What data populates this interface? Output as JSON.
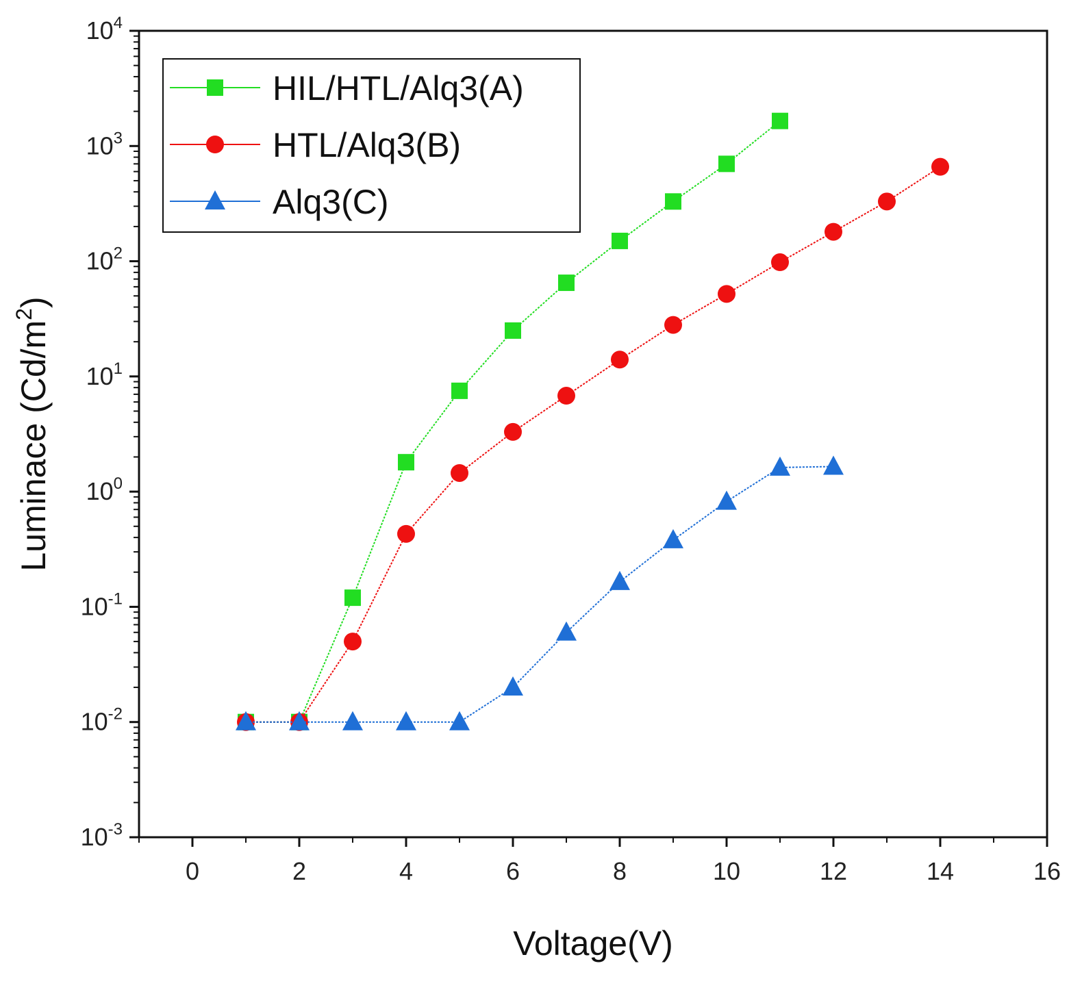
{
  "chart_data": {
    "type": "scatter",
    "title": "",
    "xlabel": "Voltage(V)",
    "ylabel_base": "Luminace (Cd/m",
    "ylabel_sup": "2",
    "ylabel_close": ")",
    "xlim": [
      -1,
      16
    ],
    "ylim": [
      0.001,
      10000
    ],
    "yscale": "log",
    "xticks": [
      0,
      2,
      4,
      6,
      8,
      10,
      12,
      14,
      16
    ],
    "yticks": [
      {
        "value": 0.001,
        "base": "10",
        "exp": "-3"
      },
      {
        "value": 0.01,
        "base": "10",
        "exp": "-2"
      },
      {
        "value": 0.1,
        "base": "10",
        "exp": "-1"
      },
      {
        "value": 1,
        "base": "10",
        "exp": "0"
      },
      {
        "value": 10,
        "base": "10",
        "exp": "1"
      },
      {
        "value": 100,
        "base": "10",
        "exp": "2"
      },
      {
        "value": 1000,
        "base": "10",
        "exp": "3"
      },
      {
        "value": 10000,
        "base": "10",
        "exp": "4"
      }
    ],
    "legend_position": "top-left",
    "series": [
      {
        "name": "HIL/HTL/Alq3(A)",
        "color": "#22dd22",
        "marker": "square",
        "points": [
          [
            1,
            0.01
          ],
          [
            2,
            0.01
          ],
          [
            3,
            0.12
          ],
          [
            4,
            1.8
          ],
          [
            5,
            7.5
          ],
          [
            6,
            25
          ],
          [
            7,
            65
          ],
          [
            8,
            150
          ],
          [
            9,
            330
          ],
          [
            10,
            700
          ],
          [
            11,
            1650
          ]
        ]
      },
      {
        "name": "HTL/Alq3(B)",
        "color": "#ee1111",
        "marker": "circle",
        "points": [
          [
            1,
            0.01
          ],
          [
            2,
            0.01
          ],
          [
            3,
            0.05
          ],
          [
            4,
            0.43
          ],
          [
            5,
            1.45
          ],
          [
            6,
            3.3
          ],
          [
            7,
            6.8
          ],
          [
            8,
            14
          ],
          [
            9,
            28
          ],
          [
            10,
            52
          ],
          [
            11,
            98
          ],
          [
            12,
            180
          ],
          [
            13,
            330
          ],
          [
            14,
            660
          ]
        ]
      },
      {
        "name": "Alq3(C)",
        "color": "#1f6fd6",
        "marker": "triangle",
        "points": [
          [
            1,
            0.01
          ],
          [
            2,
            0.01
          ],
          [
            3,
            0.01
          ],
          [
            4,
            0.01
          ],
          [
            5,
            0.01
          ],
          [
            6,
            0.02
          ],
          [
            7,
            0.06
          ],
          [
            8,
            0.165
          ],
          [
            9,
            0.38
          ],
          [
            10,
            0.82
          ],
          [
            11,
            1.62
          ],
          [
            12,
            1.65
          ]
        ]
      }
    ]
  }
}
